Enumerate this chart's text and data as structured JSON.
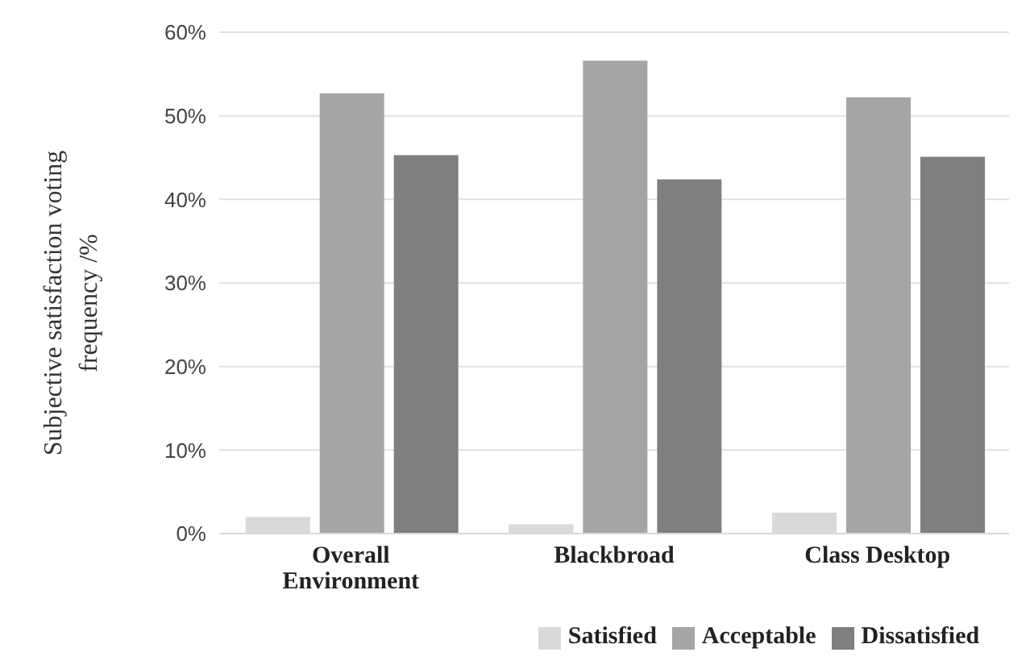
{
  "chart_data": {
    "type": "bar",
    "ylabel": "Subjective satisfaction voting frequency /%",
    "categories": [
      "Overall Environment",
      "Blackbroad",
      "Class Desktop"
    ],
    "series": [
      {
        "name": "Satisfied",
        "color": "#d9d9d9",
        "values": [
          2.0,
          1.1,
          2.5
        ]
      },
      {
        "name": "Acceptable",
        "color": "#a5a5a5",
        "values": [
          52.7,
          56.6,
          52.2
        ]
      },
      {
        "name": "Dissatisfied",
        "color": "#7f7f7f",
        "values": [
          45.3,
          42.4,
          45.1
        ]
      }
    ],
    "ylim": [
      0,
      60
    ],
    "yticks": [
      {
        "value": 0,
        "label": "0%"
      },
      {
        "value": 10,
        "label": "10%"
      },
      {
        "value": 20,
        "label": "20%"
      },
      {
        "value": 30,
        "label": "30%"
      },
      {
        "value": 40,
        "label": "40%"
      },
      {
        "value": 50,
        "label": "50%"
      },
      {
        "value": 60,
        "label": "60%"
      }
    ],
    "grid": "y",
    "legend": "bottom"
  }
}
